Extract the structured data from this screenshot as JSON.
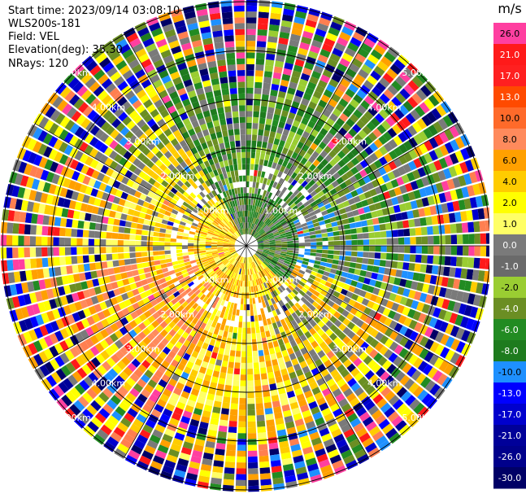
{
  "header": {
    "start_time": "Start time: 2023/09/14 03:08:10",
    "instrument": "WLS200s-181",
    "field": "Field: VEL",
    "elevation": "Elevation(deg): 35.30",
    "nrays": "NRays: 120"
  },
  "chart_data": {
    "type": "heatmap",
    "projection": "polar PPI",
    "n_rays": 120,
    "range_rings_km": [
      1,
      2,
      3,
      4,
      5
    ],
    "ring_labels": [
      "1.00km",
      "2.00km",
      "3.00km",
      "4.00km",
      "5.00km"
    ],
    "colorbar": {
      "unit": "m/s",
      "ticks": [
        "26.0",
        "21.0",
        "17.0",
        "13.0",
        "10.0",
        "8.0",
        "6.0",
        "4.0",
        "2.0",
        "1.0",
        "0.0",
        "-1.0",
        "-2.0",
        "-4.0",
        "-6.0",
        "-8.0",
        "-10.0",
        "-13.0",
        "-17.0",
        "-21.0",
        "-26.0",
        "-30.0"
      ],
      "colors": [
        "#ff3fa0",
        "#ff1a1a",
        "#ff2020",
        "#ff4a00",
        "#ff6a2a",
        "#ff8a5c",
        "#ffa000",
        "#ffcc00",
        "#ffff00",
        "#ffff66",
        "#7a7a7a",
        "#6a6a6a",
        "#9acd32",
        "#6b8e23",
        "#228b22",
        "#1e7b1e",
        "#1e90ff",
        "#0000ff",
        "#0000cd",
        "#000099",
        "#00008b",
        "#000066"
      ]
    }
  }
}
